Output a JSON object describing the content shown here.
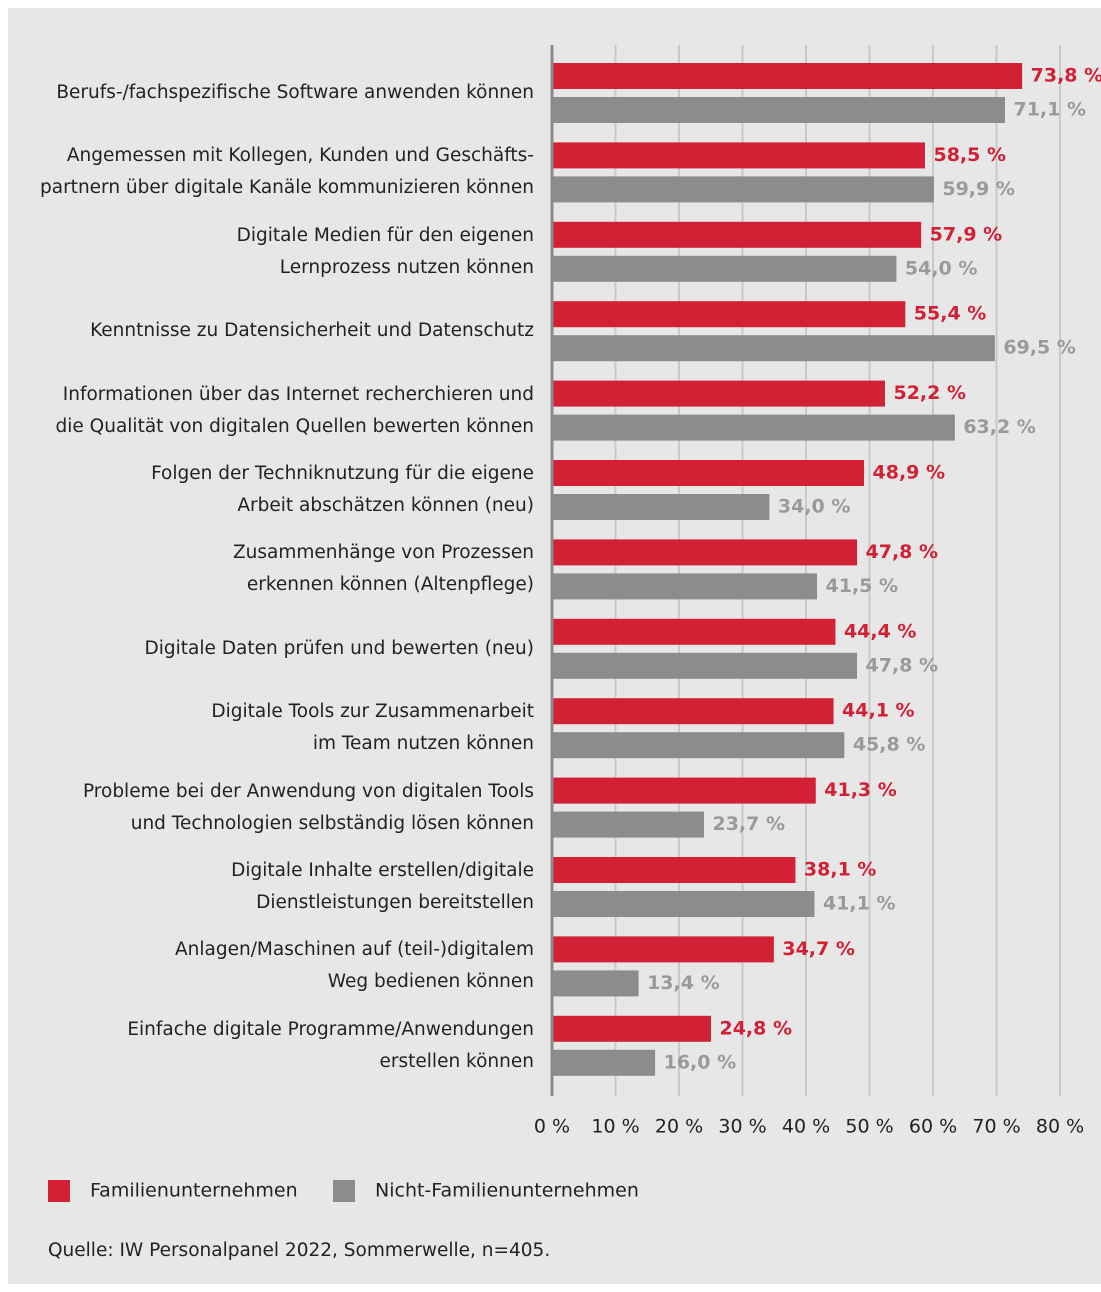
{
  "chart_data": {
    "type": "barh",
    "categories": [
      "Berufs-/fachspezifische Software anwenden können",
      "Angemessen mit Kollegen, Kunden und Geschäfts-\npartnern über digitale Kanäle kommunizieren können",
      "Digitale Medien für den eigenen\nLernprozess nutzen können",
      "Kenntnisse zu Datensicherheit und Datenschutz",
      "Informationen über das Internet recherchieren und\ndie Qualität von digitalen Quellen bewerten können",
      "Folgen der Techniknutzung für die eigene\nArbeit abschätzen können (neu)",
      "Zusammenhänge von Prozessen\nerkennen können (Altenpflege)",
      "Digitale Daten prüfen und bewerten (neu)",
      "Digitale Tools zur Zusammenarbeit\nim Team nutzen können",
      "Probleme bei der Anwendung von digitalen Tools\nund Technologien selbständig lösen können",
      "Digitale Inhalte erstellen/digitale\nDienstleistungen bereitstellen",
      "Anlagen/Maschinen auf (teil-)digitalem\nWeg bedienen können",
      "Einfache digitale Programme/Anwendungen\nerstellen können"
    ],
    "series": [
      {
        "name": "Familienunternehmen",
        "color": "#d22035",
        "label_color": "#d22035",
        "values": [
          73.8,
          58.5,
          57.9,
          55.4,
          52.2,
          48.9,
          47.8,
          44.4,
          44.1,
          41.3,
          38.1,
          34.7,
          24.8
        ],
        "value_labels": [
          "73,8 %",
          "58,5 %",
          "57,9 %",
          "55,4 %",
          "52,2 %",
          "48,9 %",
          "47,8 %",
          "44,4 %",
          "44,1 %",
          "41,3 %",
          "38,1 %",
          "34,7 %",
          "24,8 %"
        ]
      },
      {
        "name": "Nicht-Familienunternehmen",
        "color": "#8c8c8e",
        "label_color": "#9a9a9c",
        "values": [
          71.1,
          59.9,
          54.0,
          69.5,
          63.2,
          34.0,
          41.5,
          47.8,
          45.8,
          23.7,
          41.1,
          13.4,
          16.0
        ],
        "value_labels": [
          "71,1 %",
          "59,9 %",
          "54,0 %",
          "69,5 %",
          "63,2 %",
          "34,0 %",
          "41,5 %",
          "47,8 %",
          "45,8 %",
          "23,7 %",
          "41,1 %",
          "13,4 %",
          "16,0 %"
        ]
      }
    ],
    "xlim": [
      0,
      80
    ],
    "xticks": [
      {
        "value": 0,
        "label": "0 %"
      },
      {
        "value": 10,
        "label": "10 %"
      },
      {
        "value": 20,
        "label": "20 %"
      },
      {
        "value": 30,
        "label": "30 %"
      },
      {
        "value": 40,
        "label": "40 %"
      },
      {
        "value": 50,
        "label": "50 %"
      },
      {
        "value": 60,
        "label": "60 %"
      },
      {
        "value": 70,
        "label": "70 %"
      },
      {
        "value": 80,
        "label": "80 %"
      }
    ],
    "grid": true,
    "legend": "bottom-left",
    "source": "Quelle: IW Personalpanel 2022, Sommerwelle, n=405."
  }
}
